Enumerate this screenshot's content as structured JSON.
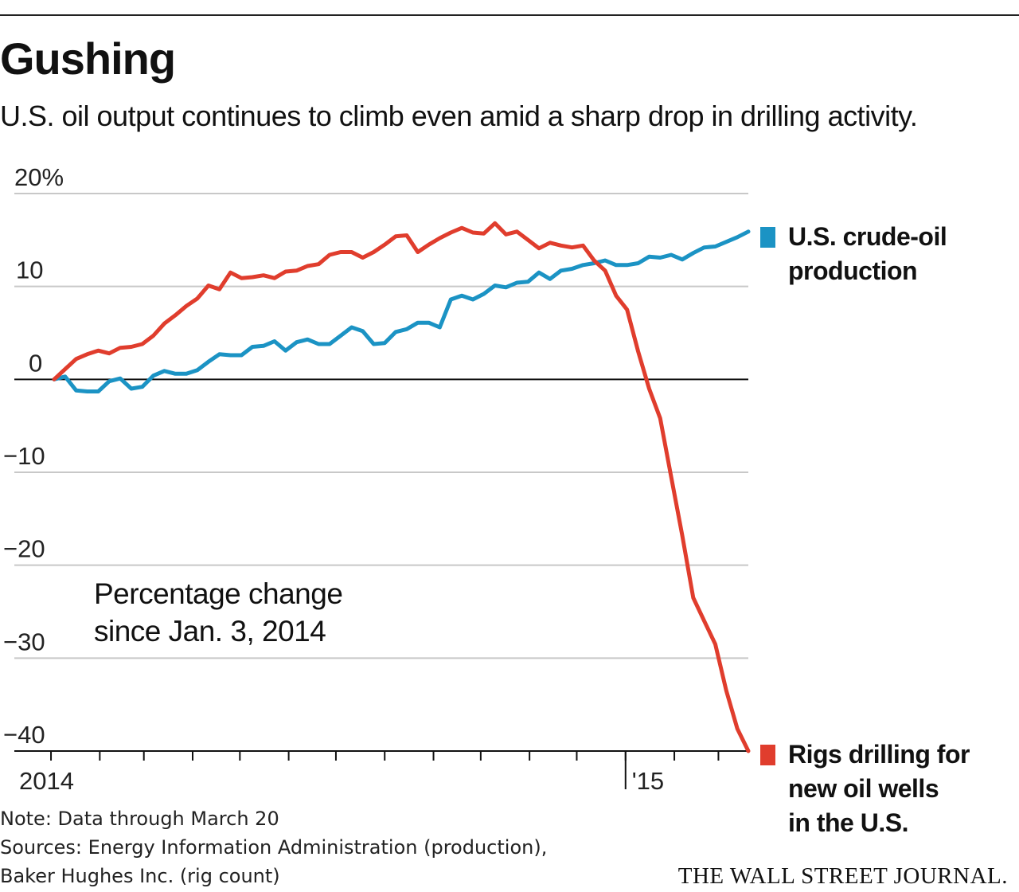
{
  "header": {
    "title": "Gushing",
    "subtitle": "U.S. oil output continues to climb even amid a sharp drop in drilling activity."
  },
  "annotation": {
    "line1": "Percentage change",
    "line2": "since Jan. 3, 2014"
  },
  "legend": {
    "production": {
      "line1": "U.S. crude-oil",
      "line2": "production"
    },
    "rigs": {
      "line1": "Rigs drilling for",
      "line2": "new oil wells",
      "line3": "in the U.S."
    }
  },
  "footer": {
    "note": "Note: Data through March 20",
    "sources_line1": "Sources: Energy Information Administration (production),",
    "sources_line2": "Baker Hughes Inc. (rig count)",
    "brand": "THE WALL STREET JOURNAL."
  },
  "chart_data": {
    "type": "line",
    "title": "Gushing",
    "subtitle": "U.S. oil output continues to climb even amid a sharp drop in drilling activity.",
    "ylabel": "Percentage change since Jan. 3, 2014",
    "ylim": [
      -40,
      20
    ],
    "yticks": [
      20,
      10,
      0,
      -10,
      -20,
      -30,
      -40
    ],
    "ytick_labels": [
      "20%",
      "10",
      "0",
      "−10",
      "−20",
      "−30",
      "−40"
    ],
    "xlim": [
      "2014-01-03",
      "2015-03-20"
    ],
    "xtick_labels": [
      {
        "date": "2014-01-01",
        "label": "2014"
      },
      {
        "date": "2015-01-01",
        "label": "'15"
      }
    ],
    "month_ticks": [
      "2014-01-01",
      "2014-02-01",
      "2014-03-01",
      "2014-04-01",
      "2014-05-01",
      "2014-06-01",
      "2014-07-01",
      "2014-08-01",
      "2014-09-01",
      "2014-10-01",
      "2014-11-01",
      "2014-12-01",
      "2015-01-01",
      "2015-02-01",
      "2015-03-01"
    ],
    "grid": true,
    "legend_placement": "right",
    "series": [
      {
        "name": "U.S. crude-oil production",
        "color": "#1b93c4",
        "points": [
          [
            "2014-01-03",
            0
          ],
          [
            "2014-01-10",
            0.3
          ],
          [
            "2014-01-17",
            -1.2
          ],
          [
            "2014-01-24",
            -1.3
          ],
          [
            "2014-01-31",
            -1.3
          ],
          [
            "2014-02-07",
            -0.2
          ],
          [
            "2014-02-14",
            0.1
          ],
          [
            "2014-02-21",
            -1.0
          ],
          [
            "2014-02-28",
            -0.8
          ],
          [
            "2014-03-07",
            0.4
          ],
          [
            "2014-03-14",
            0.9
          ],
          [
            "2014-03-21",
            0.6
          ],
          [
            "2014-03-28",
            0.6
          ],
          [
            "2014-04-04",
            1.0
          ],
          [
            "2014-04-11",
            1.9
          ],
          [
            "2014-04-18",
            2.7
          ],
          [
            "2014-04-25",
            2.6
          ],
          [
            "2014-05-02",
            2.6
          ],
          [
            "2014-05-09",
            3.5
          ],
          [
            "2014-05-16",
            3.6
          ],
          [
            "2014-05-23",
            4.1
          ],
          [
            "2014-05-30",
            3.1
          ],
          [
            "2014-06-06",
            4.0
          ],
          [
            "2014-06-13",
            4.3
          ],
          [
            "2014-06-20",
            3.8
          ],
          [
            "2014-06-27",
            3.8
          ],
          [
            "2014-07-04",
            4.7
          ],
          [
            "2014-07-11",
            5.6
          ],
          [
            "2014-07-18",
            5.2
          ],
          [
            "2014-07-25",
            3.8
          ],
          [
            "2014-08-01",
            3.9
          ],
          [
            "2014-08-08",
            5.1
          ],
          [
            "2014-08-15",
            5.4
          ],
          [
            "2014-08-22",
            6.1
          ],
          [
            "2014-08-29",
            6.1
          ],
          [
            "2014-09-05",
            5.6
          ],
          [
            "2014-09-12",
            8.6
          ],
          [
            "2014-09-19",
            9.0
          ],
          [
            "2014-09-26",
            8.6
          ],
          [
            "2014-10-03",
            9.2
          ],
          [
            "2014-10-10",
            10.1
          ],
          [
            "2014-10-17",
            9.9
          ],
          [
            "2014-10-24",
            10.4
          ],
          [
            "2014-10-31",
            10.5
          ],
          [
            "2014-11-07",
            11.5
          ],
          [
            "2014-11-14",
            10.8
          ],
          [
            "2014-11-21",
            11.7
          ],
          [
            "2014-11-28",
            11.9
          ],
          [
            "2014-12-05",
            12.3
          ],
          [
            "2014-12-12",
            12.5
          ],
          [
            "2014-12-19",
            12.8
          ],
          [
            "2014-12-26",
            12.3
          ],
          [
            "2015-01-02",
            12.3
          ],
          [
            "2015-01-09",
            12.5
          ],
          [
            "2015-01-16",
            13.2
          ],
          [
            "2015-01-23",
            13.1
          ],
          [
            "2015-01-30",
            13.4
          ],
          [
            "2015-02-06",
            12.9
          ],
          [
            "2015-02-13",
            13.6
          ],
          [
            "2015-02-20",
            14.2
          ],
          [
            "2015-02-27",
            14.3
          ],
          [
            "2015-03-06",
            14.8
          ],
          [
            "2015-03-13",
            15.3
          ],
          [
            "2015-03-20",
            15.9
          ]
        ]
      },
      {
        "name": "Rigs drilling for new oil wells in the U.S.",
        "color": "#e03d2d",
        "points": [
          [
            "2014-01-03",
            0
          ],
          [
            "2014-01-10",
            1.1
          ],
          [
            "2014-01-17",
            2.2
          ],
          [
            "2014-01-24",
            2.7
          ],
          [
            "2014-01-31",
            3.1
          ],
          [
            "2014-02-07",
            2.8
          ],
          [
            "2014-02-14",
            3.4
          ],
          [
            "2014-02-21",
            3.5
          ],
          [
            "2014-02-28",
            3.8
          ],
          [
            "2014-03-07",
            4.7
          ],
          [
            "2014-03-14",
            6.0
          ],
          [
            "2014-03-21",
            6.9
          ],
          [
            "2014-03-28",
            7.9
          ],
          [
            "2014-04-04",
            8.7
          ],
          [
            "2014-04-11",
            10.1
          ],
          [
            "2014-04-18",
            9.7
          ],
          [
            "2014-04-25",
            11.5
          ],
          [
            "2014-05-02",
            10.9
          ],
          [
            "2014-05-09",
            11.0
          ],
          [
            "2014-05-16",
            11.2
          ],
          [
            "2014-05-23",
            10.9
          ],
          [
            "2014-05-30",
            11.6
          ],
          [
            "2014-06-06",
            11.7
          ],
          [
            "2014-06-13",
            12.2
          ],
          [
            "2014-06-20",
            12.4
          ],
          [
            "2014-06-27",
            13.4
          ],
          [
            "2014-07-04",
            13.7
          ],
          [
            "2014-07-11",
            13.7
          ],
          [
            "2014-07-18",
            13.1
          ],
          [
            "2014-07-25",
            13.7
          ],
          [
            "2014-08-01",
            14.5
          ],
          [
            "2014-08-08",
            15.4
          ],
          [
            "2014-08-15",
            15.5
          ],
          [
            "2014-08-22",
            13.7
          ],
          [
            "2014-08-29",
            14.5
          ],
          [
            "2014-09-05",
            15.2
          ],
          [
            "2014-09-12",
            15.8
          ],
          [
            "2014-09-19",
            16.3
          ],
          [
            "2014-09-26",
            15.8
          ],
          [
            "2014-10-03",
            15.7
          ],
          [
            "2014-10-10",
            16.8
          ],
          [
            "2014-10-17",
            15.6
          ],
          [
            "2014-10-24",
            15.9
          ],
          [
            "2014-10-31",
            15.0
          ],
          [
            "2014-11-07",
            14.1
          ],
          [
            "2014-11-14",
            14.7
          ],
          [
            "2014-11-21",
            14.4
          ],
          [
            "2014-11-28",
            14.2
          ],
          [
            "2014-12-05",
            14.4
          ],
          [
            "2014-12-12",
            12.8
          ],
          [
            "2014-12-19",
            11.7
          ],
          [
            "2014-12-26",
            9.0
          ],
          [
            "2015-01-02",
            7.5
          ],
          [
            "2015-01-09",
            3.0
          ],
          [
            "2015-01-16",
            -1.0
          ],
          [
            "2015-01-23",
            -4.2
          ],
          [
            "2015-01-30",
            -10.5
          ],
          [
            "2015-02-06",
            -16.8
          ],
          [
            "2015-02-13",
            -23.5
          ],
          [
            "2015-02-20",
            -26.0
          ],
          [
            "2015-02-27",
            -28.5
          ],
          [
            "2015-03-06",
            -33.5
          ],
          [
            "2015-03-13",
            -37.6
          ],
          [
            "2015-03-20",
            -40.0
          ]
        ]
      }
    ]
  }
}
